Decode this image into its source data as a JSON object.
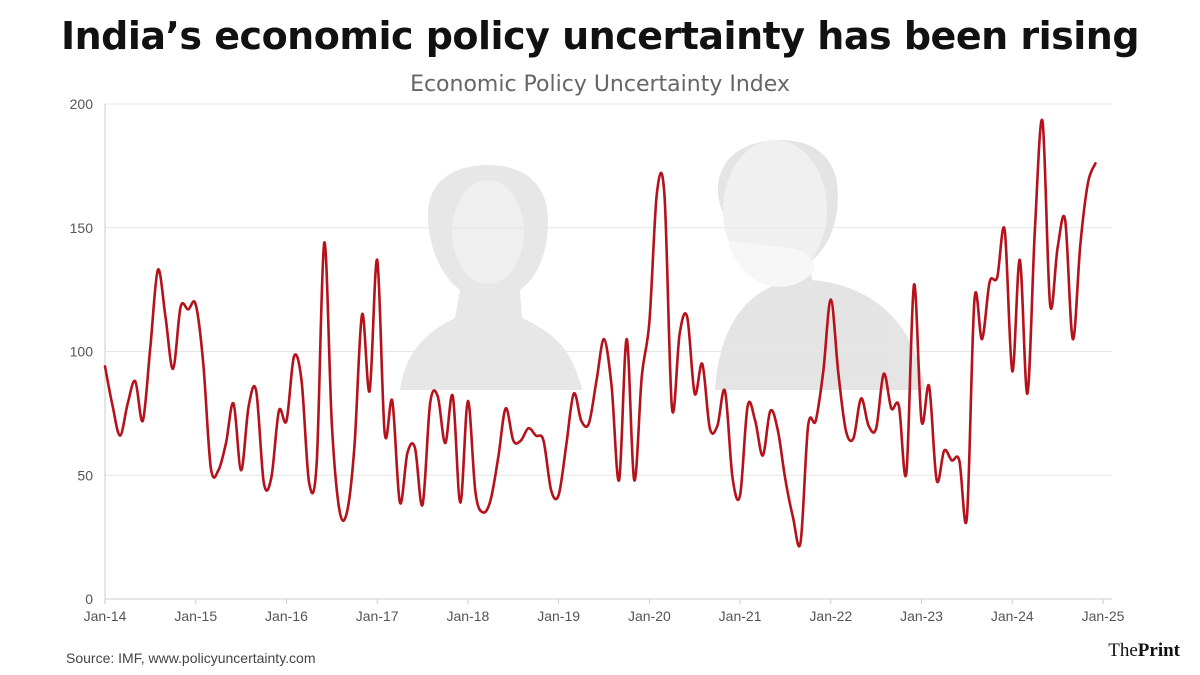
{
  "title": "India’s economic policy uncertainty has been rising",
  "subtitle": "Economic Policy Uncertainty Index",
  "source": "Source: IMF, www.policyuncertainty.com",
  "brand": {
    "prefix": "The",
    "name": "Print"
  },
  "colors": {
    "line": "#b5121b",
    "grid": "#e6e6e6",
    "axis": "#cccccc"
  },
  "chart_data": {
    "type": "line",
    "title": "India’s economic policy uncertainty has been rising",
    "subtitle": "Economic Policy Uncertainty Index",
    "xlabel": "",
    "ylabel": "",
    "ylim": [
      0,
      200
    ],
    "yticks": [
      0,
      50,
      100,
      150,
      200
    ],
    "xticks": [
      "Jan-14",
      "Jan-15",
      "Jan-16",
      "Jan-17",
      "Jan-18",
      "Jan-19",
      "Jan-20",
      "Jan-21",
      "Jan-22",
      "Jan-23",
      "Jan-24",
      "Jan-25"
    ],
    "grid": true,
    "legend": "none",
    "series": [
      {
        "values": [
          94,
          78,
          66,
          79,
          88,
          72,
          102,
          133,
          114,
          93,
          118,
          117,
          119,
          95,
          53,
          52,
          63,
          79,
          52,
          78,
          84,
          47,
          49,
          76,
          72,
          98,
          88,
          47,
          55,
          144,
          71,
          36,
          35,
          62,
          115,
          84,
          137,
          67,
          80,
          39,
          59,
          61,
          38,
          79,
          82,
          63,
          82,
          39,
          80,
          43,
          35,
          40,
          57,
          77,
          64,
          64,
          69,
          66,
          64,
          44,
          42,
          62,
          83,
          72,
          71,
          88,
          105,
          86,
          48,
          105,
          48,
          90,
          112,
          164,
          163,
          77,
          107,
          114,
          83,
          95,
          69,
          70,
          84,
          49,
          42,
          78,
          72,
          58,
          76,
          68,
          48,
          33,
          23,
          70,
          72,
          92,
          121,
          91,
          68,
          65,
          81,
          70,
          69,
          91,
          77,
          78,
          51,
          127,
          72,
          86,
          48,
          60,
          56,
          56,
          33,
          121,
          105,
          128,
          130,
          149,
          92,
          137,
          83,
          150,
          193,
          119,
          142,
          153,
          105,
          143,
          168,
          176
        ]
      }
    ]
  }
}
